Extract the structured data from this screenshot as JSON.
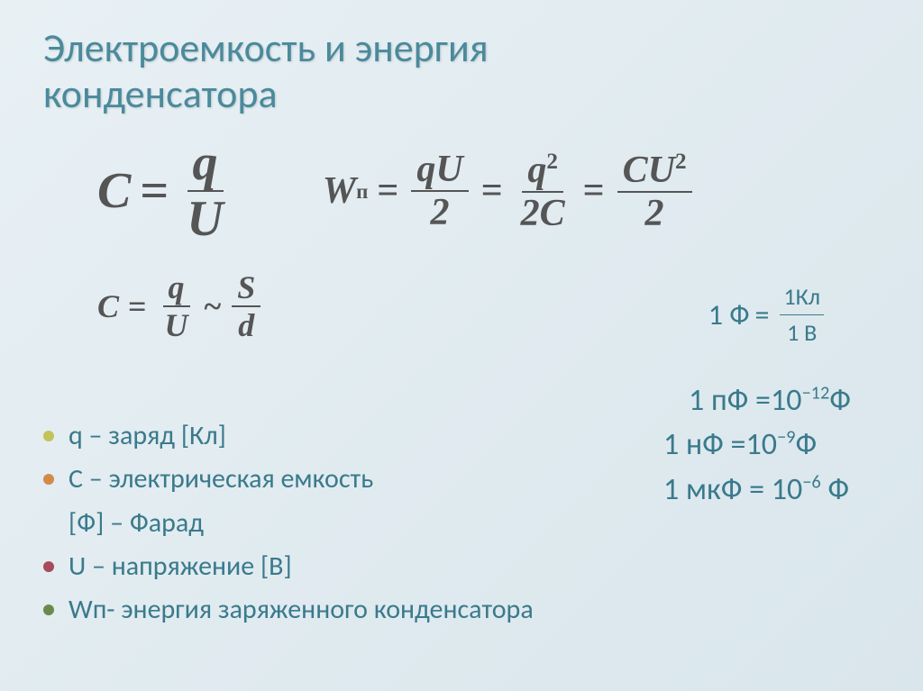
{
  "title_line1": "Электроемкость и энергия",
  "title_line2": "конденсатора",
  "colors": {
    "title": "#4a8a9c",
    "formula": "#555555",
    "accent": "#3a7a8c",
    "bullets": [
      "#c4c35a",
      "#d28a4a",
      "#a84a5a",
      "#6a8a4a"
    ],
    "background_start": "#e8f0f4",
    "background_end": "#d9e6ec"
  },
  "formulas": {
    "capacitance_main": {
      "lhs": "C",
      "num": "q",
      "den": "U"
    },
    "energy": {
      "lhs": "W",
      "lhs_sub": "п",
      "form1_num": "qU",
      "form1_den": "2",
      "form2_num": "q",
      "form2_sup": "2",
      "form2_den": "2C",
      "form3_num": "CU",
      "form3_sup": "2",
      "form3_den": "2"
    },
    "capacitance_geom": {
      "lhs": "C",
      "num1": "q",
      "den1": "U",
      "rel": "~",
      "num2": "S",
      "den2": "d"
    }
  },
  "farad_def": {
    "lhs": "1 Ф",
    "num": "1Кл",
    "den": "1 В"
  },
  "conversions": [
    {
      "lhs": "1 пФ =",
      "base": "10",
      "exp": "−12",
      "unit": "Ф"
    },
    {
      "lhs": "1 нФ =",
      "base": "10",
      "exp": "−9",
      "unit": "Ф"
    },
    {
      "lhs": "1 мкФ = ",
      "base": "10",
      "exp": "−6",
      "unit": "  Ф"
    }
  ],
  "legend": [
    {
      "text": "q – заряд [Кл]",
      "bullet": 0
    },
    {
      "text": "C – электрическая емкость",
      "bullet": 1
    },
    {
      "text": "[Ф] – Фарад",
      "bullet": null
    },
    {
      "text": "U – напряжение [В]",
      "bullet": 2
    },
    {
      "text": "Wп- энергия заряженного конденсатора",
      "bullet": 3
    }
  ]
}
